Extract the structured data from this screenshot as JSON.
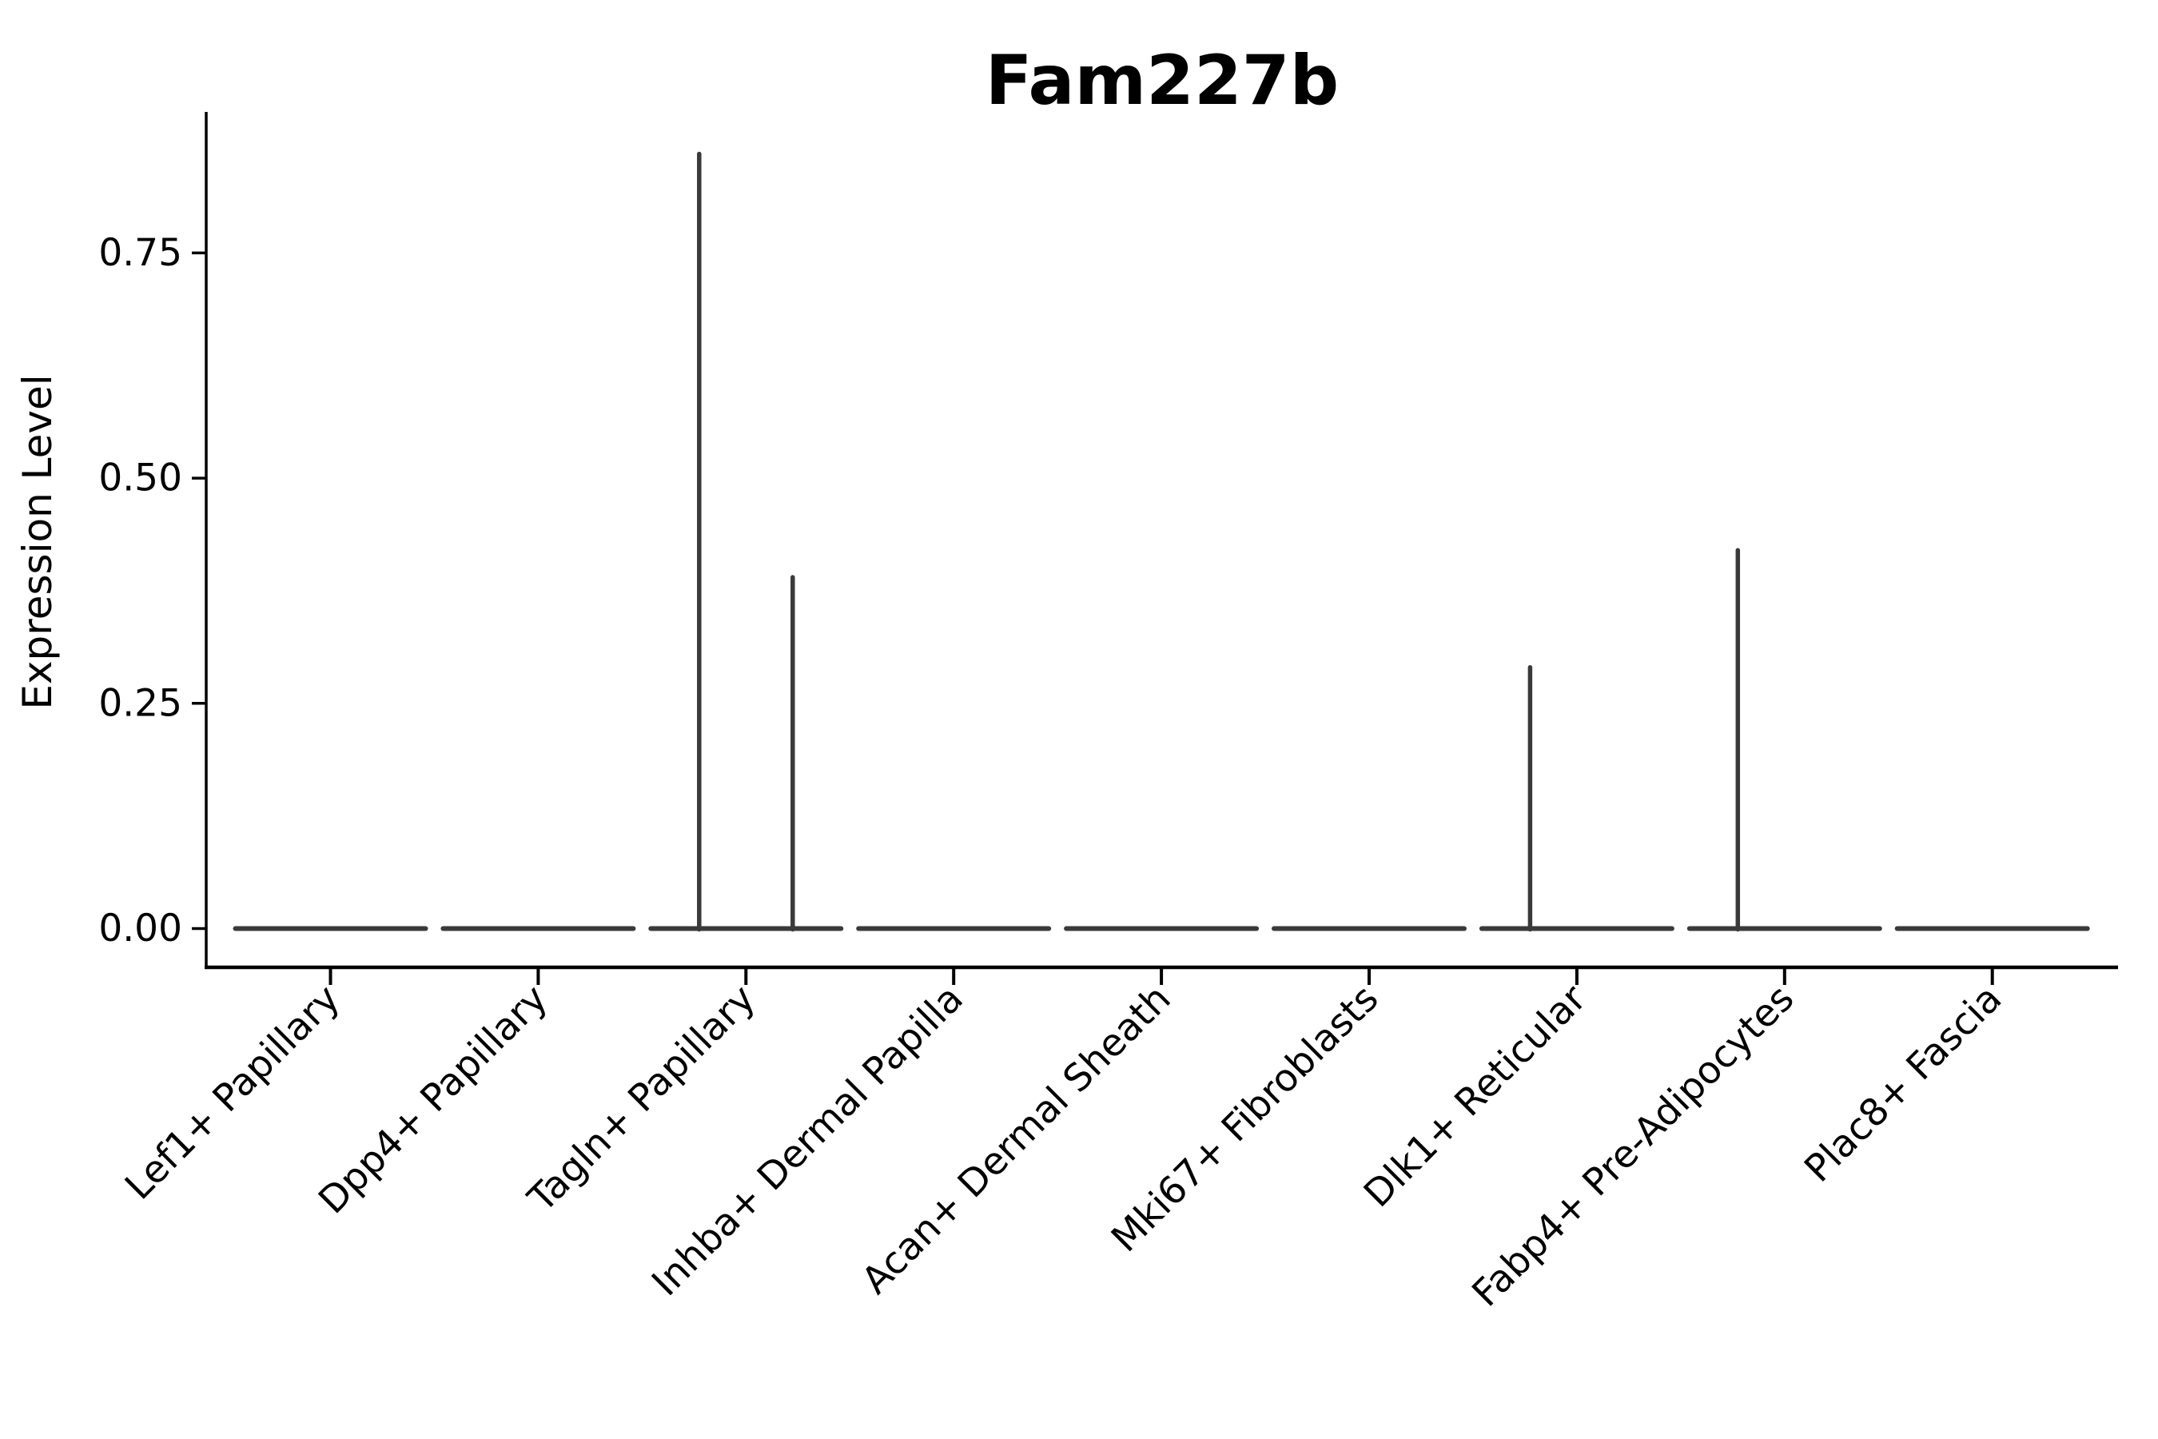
{
  "title": "Fam227b",
  "y_axis": {
    "label": "Expression Level",
    "ticks": [
      {
        "label": "0.00",
        "value": 0.0
      },
      {
        "label": "0.25",
        "value": 0.25
      },
      {
        "label": "0.50",
        "value": 0.5
      },
      {
        "label": "0.75",
        "value": 0.75
      }
    ]
  },
  "x_axis": {
    "categories": [
      "Lef1+ Papillary",
      "Dpp4+ Papillary",
      "Tagln+ Papillary",
      "Inhba+ Dermal Papilla",
      "Acan+ Dermal Sheath",
      "Mki67+ Fibroblasts",
      "Dlk1+ Reticular",
      "Fabp4+ Pre-Adipocytes",
      "Plac8+ Fascia"
    ]
  },
  "colors": {
    "background": "#ffffff",
    "axis": "#000000",
    "text": "#000000",
    "violin": "#3a3a3a"
  },
  "chart_data": {
    "type": "violin",
    "title": "Fam227b",
    "xlabel": "",
    "ylabel": "Expression Level",
    "categories": [
      "Lef1+ Papillary",
      "Dpp4+ Papillary",
      "Tagln+ Papillary",
      "Inhba+ Dermal Papilla",
      "Acan+ Dermal Sheath",
      "Mki67+ Fibroblasts",
      "Dlk1+ Reticular",
      "Fabp4+ Pre-Adipocytes",
      "Plac8+ Fascia"
    ],
    "yticks": [
      0.0,
      0.25,
      0.5,
      0.75
    ],
    "ylim": [
      -0.045,
      0.905
    ],
    "grid": false,
    "legend": "none",
    "baseline_expression": 0.0,
    "series": [
      {
        "name": "left-violin",
        "max_expression": [
          0,
          0,
          0.86,
          0,
          0,
          0,
          0.29,
          0.42,
          0
        ]
      },
      {
        "name": "right-violin",
        "max_expression": [
          0,
          0,
          0.39,
          0,
          0,
          0,
          0,
          0,
          0
        ]
      }
    ]
  }
}
